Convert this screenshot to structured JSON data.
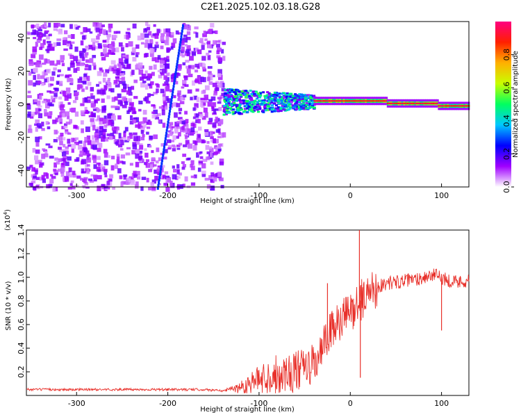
{
  "title": "C2E1.2025.102.03.18.G28",
  "chart_data": [
    {
      "type": "heatmap",
      "xlabel": "Height of straight line (km)",
      "ylabel": "Frequency (Hz)",
      "xlim": [
        -355,
        130
      ],
      "ylim": [
        -50,
        50
      ],
      "x_ticks": [
        "-300",
        "-200",
        "-100",
        "0",
        "100"
      ],
      "y_ticks": [
        "40",
        "20",
        "0",
        "-20",
        "-40"
      ],
      "colorbar": {
        "label": "Normalized spectral amplitude",
        "range": [
          0,
          1
        ],
        "ticks": [
          "0.0",
          "0.2",
          "0.4",
          "0.6",
          "0.8"
        ],
        "colors": [
          "#ffffff",
          "#a000ff",
          "#0000ff",
          "#00c8ff",
          "#00ff60",
          "#c8ff00",
          "#ffb000",
          "#ff2000",
          "#ff0080"
        ]
      },
      "regions": [
        {
          "desc": "diffuse",
          "x": [
            -355,
            -140
          ],
          "y": [
            -50,
            50
          ],
          "level": 0.15
        },
        {
          "desc": "band",
          "x": [
            -140,
            -40
          ],
          "y": [
            -8,
            8
          ],
          "level": 0.35
        },
        {
          "desc": "band",
          "x": [
            -40,
            130
          ],
          "y": [
            -2,
            4
          ],
          "level": 0.85
        }
      ]
    },
    {
      "type": "line",
      "xlabel": "Height of straight line (km)",
      "ylabel": "SNR (10 * v/v)",
      "y_multiplier": "(x10",
      "y_multiplier_exp": "4",
      "y_multiplier_close": ")",
      "xlim": [
        -355,
        130
      ],
      "ylim": [
        0,
        1.4
      ],
      "x_ticks": [
        "-300",
        "-200",
        "-100",
        "0",
        "100"
      ],
      "y_ticks": [
        "0.2",
        "0.4",
        "0.6",
        "0.8",
        "1.0",
        "1.2",
        "1.4"
      ],
      "series": [
        {
          "color": "#e8302a",
          "x": [
            -355,
            -300,
            -250,
            -200,
            -160,
            -140,
            -120,
            -100,
            -80,
            -60,
            -45,
            -35,
            -25,
            -20,
            -15,
            -10,
            -5,
            0,
            5,
            10,
            15,
            20,
            30,
            40,
            50,
            60,
            70,
            80,
            90,
            100,
            110,
            120,
            130
          ],
          "values": [
            0.05,
            0.05,
            0.05,
            0.05,
            0.05,
            0.04,
            0.07,
            0.14,
            0.18,
            0.2,
            0.24,
            0.3,
            0.5,
            0.55,
            0.6,
            0.62,
            0.68,
            0.7,
            0.75,
            0.8,
            0.82,
            0.88,
            0.92,
            0.95,
            0.96,
            0.97,
            0.98,
            1.0,
            1.02,
            1.0,
            0.97,
            0.96,
            0.98
          ]
        }
      ],
      "spikes": [
        {
          "x": -25,
          "y": 0.95
        },
        {
          "x": 10,
          "y": 1.42
        },
        {
          "x": 11,
          "y": 0.15
        },
        {
          "x": 100,
          "y": 0.55
        }
      ]
    }
  ]
}
